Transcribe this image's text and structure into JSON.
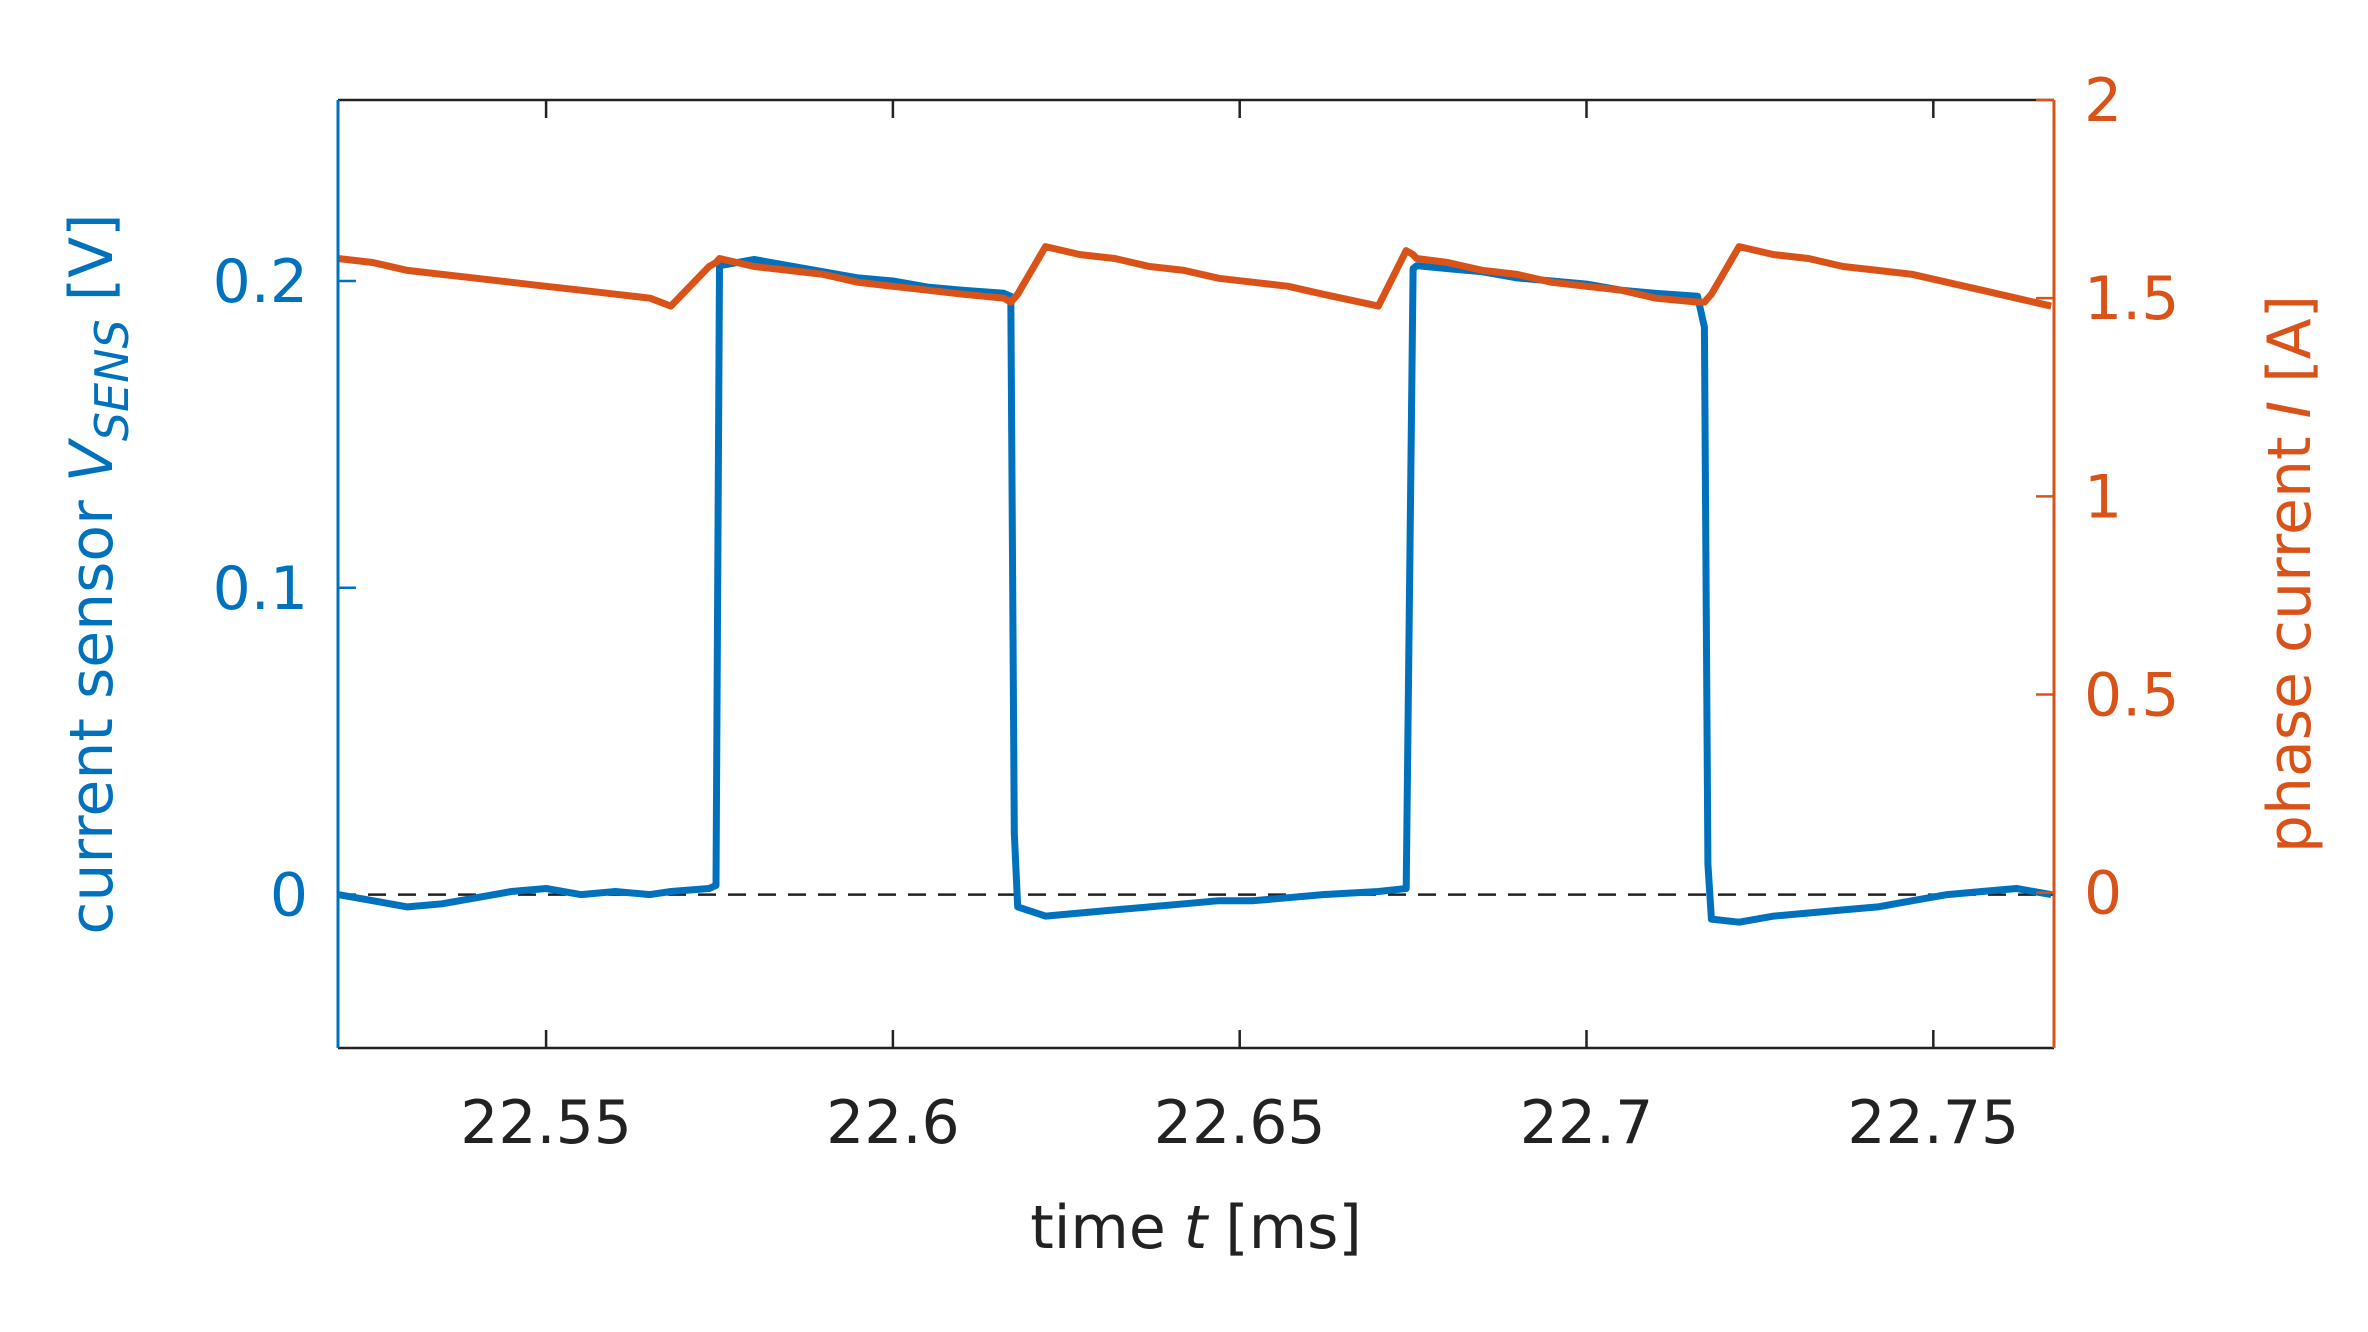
{
  "chart_data": {
    "type": "line",
    "xlabel": "time",
    "xlabel_symbol": "t",
    "xlabel_unit": "[ms]",
    "ylabel": "current sensor",
    "ylabel_symbol": "V",
    "ylabel_subscript": "SENS",
    "ylabel_unit": "[V]",
    "y2label": "phase current",
    "y2label_symbol": "I",
    "y2label_unit": "[A]",
    "x": [
      22.52,
      22.525,
      22.53,
      22.535,
      22.54,
      22.545,
      22.55,
      22.555,
      22.56,
      22.565,
      22.568,
      22.5735,
      22.5745,
      22.575,
      22.58,
      22.585,
      22.59,
      22.595,
      22.6,
      22.605,
      22.61,
      22.616,
      22.617,
      22.6175,
      22.618,
      22.622,
      22.627,
      22.632,
      22.637,
      22.642,
      22.647,
      22.652,
      22.657,
      22.662,
      22.67,
      22.674,
      22.675,
      22.6755,
      22.68,
      22.685,
      22.69,
      22.695,
      22.7,
      22.705,
      22.71,
      22.716,
      22.717,
      22.7175,
      22.718,
      22.722,
      22.727,
      22.732,
      22.737,
      22.742,
      22.747,
      22.752,
      22.757,
      22.762,
      22.767
    ],
    "series": [
      {
        "color": "#0072bd",
        "axis": "y",
        "values": [
          0.0,
          -0.002,
          -0.004,
          -0.003,
          -0.001,
          0.001,
          0.002,
          0.0,
          0.001,
          0.0,
          0.001,
          0.002,
          0.003,
          0.205,
          0.207,
          0.205,
          0.203,
          0.201,
          0.2,
          0.198,
          0.197,
          0.196,
          0.195,
          0.02,
          -0.004,
          -0.007,
          -0.006,
          -0.005,
          -0.004,
          -0.003,
          -0.002,
          -0.002,
          -0.001,
          0.0,
          0.001,
          0.002,
          0.204,
          0.205,
          0.204,
          0.203,
          0.201,
          0.2,
          0.199,
          0.197,
          0.196,
          0.195,
          0.185,
          0.01,
          -0.008,
          -0.009,
          -0.007,
          -0.006,
          -0.005,
          -0.004,
          -0.002,
          0.0,
          0.001,
          0.002,
          0.0
        ]
      },
      {
        "color": "#d95319",
        "axis": "y2",
        "values": [
          1.6,
          1.59,
          1.57,
          1.56,
          1.55,
          1.54,
          1.53,
          1.52,
          1.51,
          1.5,
          1.48,
          1.58,
          1.59,
          1.6,
          1.58,
          1.57,
          1.56,
          1.54,
          1.53,
          1.52,
          1.51,
          1.5,
          1.49,
          1.5,
          1.51,
          1.63,
          1.61,
          1.6,
          1.58,
          1.57,
          1.55,
          1.54,
          1.53,
          1.51,
          1.48,
          1.62,
          1.61,
          1.6,
          1.59,
          1.57,
          1.56,
          1.54,
          1.53,
          1.52,
          1.5,
          1.49,
          1.49,
          1.5,
          1.51,
          1.63,
          1.61,
          1.6,
          1.58,
          1.57,
          1.56,
          1.54,
          1.52,
          1.5,
          1.48
        ]
      }
    ],
    "xlim": [
      22.52,
      22.7674
    ],
    "xticks": [
      22.55,
      22.6,
      22.65,
      22.7,
      22.75
    ],
    "ylim": [
      -0.05,
      0.259
    ],
    "yticks": [
      0,
      0.1,
      0.2
    ],
    "y2lim": [
      -0.392,
      2
    ],
    "y2ticks": [
      0,
      0.5,
      1,
      1.5,
      2
    ],
    "reference_line": 0
  }
}
